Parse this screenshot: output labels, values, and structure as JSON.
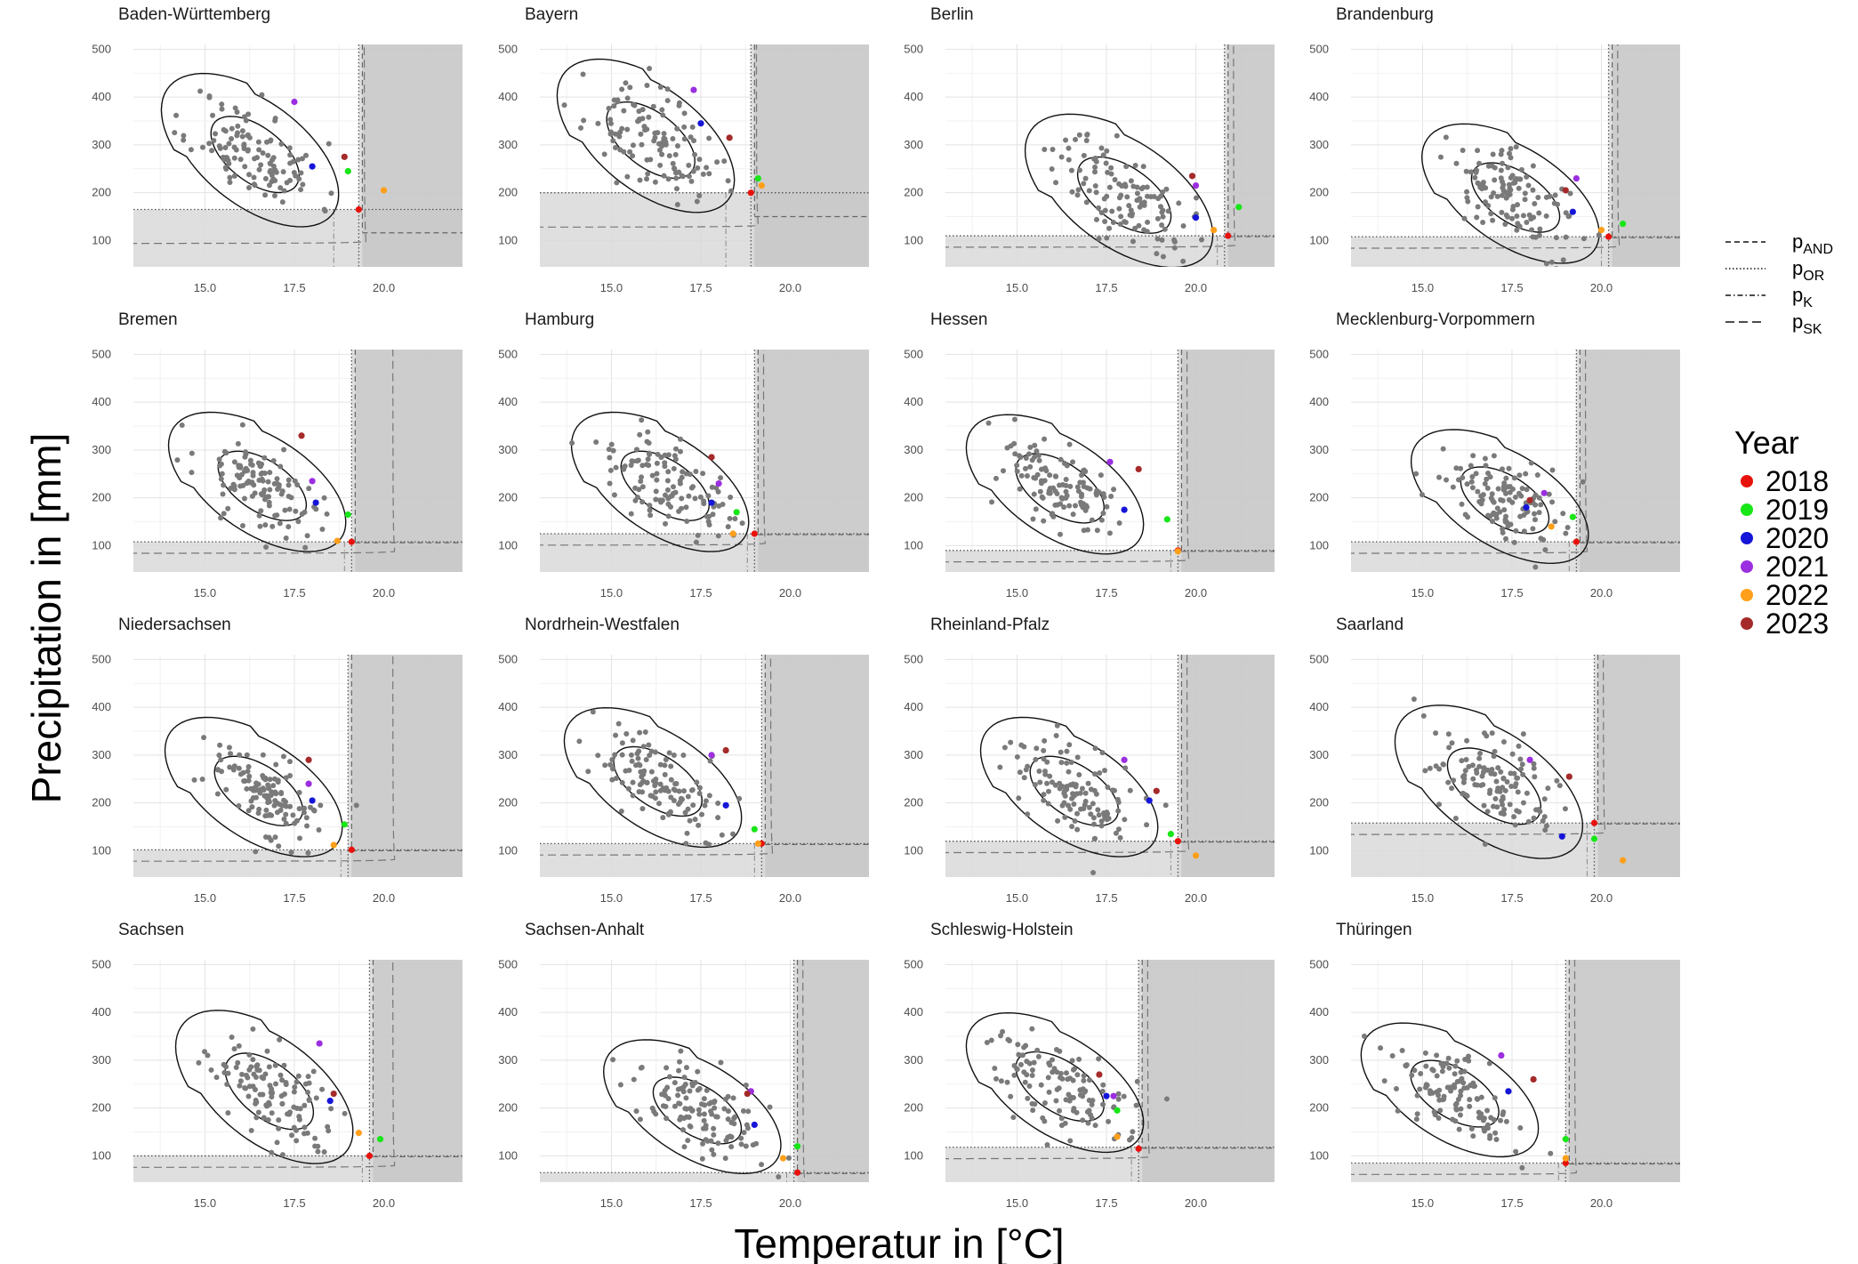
{
  "chart_data": {
    "type": "scatter",
    "xlabel": "Temperatur in [°C]",
    "ylabel": "Precipitation in [mm]",
    "xlim": [
      13,
      22.2
    ],
    "ylim": [
      45,
      510
    ],
    "x_ticks": [
      15.0,
      17.5,
      20.0
    ],
    "x_tick_labels": [
      "15.0",
      "17.5",
      "20.0"
    ],
    "y_ticks": [
      100,
      200,
      300,
      400,
      500
    ],
    "y_tick_labels": [
      "100",
      "200",
      "300",
      "400",
      "500"
    ],
    "grid": true,
    "legend_position": "right",
    "linetype_legend": [
      {
        "base": "p",
        "sub": "AND",
        "style": "dashed"
      },
      {
        "base": "p",
        "sub": "OR",
        "style": "dotted"
      },
      {
        "base": "p",
        "sub": "K",
        "style": "dotdash"
      },
      {
        "base": "p",
        "sub": "SK",
        "style": "longdash"
      }
    ],
    "year_legend": {
      "title": "Year",
      "entries": [
        {
          "label": "2018",
          "color": "#e8120c"
        },
        {
          "label": "2019",
          "color": "#17e617"
        },
        {
          "label": "2020",
          "color": "#1515d9"
        },
        {
          "label": "2021",
          "color": "#9b2fe0"
        },
        {
          "label": "2022",
          "color": "#ff9f1a"
        },
        {
          "label": "2023",
          "color": "#a52a2a"
        }
      ]
    },
    "point_color": "#7a7a7a",
    "panels": [
      {
        "title": "Baden-Württemberg",
        "center": [
          16.4,
          280
        ],
        "spread": [
          0.85,
          55
        ],
        "rho": -0.55,
        "n": 120,
        "seed": 11,
        "or_x": 19.3,
        "or_y": 165,
        "and_x": 19.4,
        "and_y": 118,
        "k_x": 18.6,
        "sk_x": 19.2,
        "sk_y": 118,
        "years": [
          [
            19.3,
            165
          ],
          [
            19.0,
            245
          ],
          [
            18.0,
            255
          ],
          [
            17.5,
            390
          ],
          [
            20.0,
            205
          ],
          [
            18.9,
            275
          ]
        ]
      },
      {
        "title": "Bayern",
        "center": [
          16.1,
          310
        ],
        "spread": [
          0.85,
          55
        ],
        "rho": -0.55,
        "n": 120,
        "seed": 23,
        "or_x": 18.9,
        "or_y": 200,
        "and_x": 19.0,
        "and_y": 152,
        "k_x": 18.2,
        "sk_x": 18.8,
        "sk_y": 152,
        "years": [
          [
            18.9,
            200
          ],
          [
            19.1,
            230
          ],
          [
            17.5,
            345
          ],
          [
            17.3,
            415
          ],
          [
            19.2,
            215
          ],
          [
            18.3,
            315
          ]
        ]
      },
      {
        "title": "Berlin",
        "center": [
          18.0,
          195
        ],
        "spread": [
          0.9,
          55
        ],
        "rho": -0.55,
        "n": 120,
        "seed": 37,
        "or_x": 20.8,
        "or_y": 110,
        "and_x": 20.9,
        "and_y": 110,
        "k_x": 20.6,
        "sk_x": 20.8,
        "sk_y": 110,
        "years": [
          [
            20.9,
            110
          ],
          [
            21.2,
            170
          ],
          [
            20.0,
            148
          ],
          [
            20.0,
            215
          ],
          [
            20.5,
            122
          ],
          [
            19.9,
            235
          ]
        ]
      },
      {
        "title": "Brandenburg",
        "center": [
          17.6,
          190
        ],
        "spread": [
          0.85,
          50
        ],
        "rho": -0.55,
        "n": 120,
        "seed": 41,
        "or_x": 20.2,
        "or_y": 108,
        "and_x": 20.3,
        "and_y": 108,
        "k_x": 20.0,
        "sk_x": 20.2,
        "sk_y": 108,
        "years": [
          [
            20.2,
            108
          ],
          [
            20.6,
            135
          ],
          [
            19.2,
            160
          ],
          [
            19.3,
            230
          ],
          [
            20.0,
            122
          ],
          [
            19.0,
            205
          ]
        ]
      },
      {
        "title": "Bremen",
        "center": [
          16.6,
          225
        ],
        "spread": [
          0.85,
          50
        ],
        "rho": -0.55,
        "n": 120,
        "seed": 53,
        "or_x": 19.1,
        "or_y": 108,
        "and_x": 19.2,
        "and_y": 108,
        "k_x": 18.9,
        "sk_x": 20.0,
        "sk_y": 108,
        "years": [
          [
            19.1,
            108
          ],
          [
            19.0,
            165
          ],
          [
            18.1,
            190
          ],
          [
            18.0,
            235
          ],
          [
            18.7,
            110
          ],
          [
            17.7,
            330
          ]
        ]
      },
      {
        "title": "Hamburg",
        "center": [
          16.5,
          225
        ],
        "spread": [
          0.85,
          50
        ],
        "rho": -0.55,
        "n": 120,
        "seed": 67,
        "or_x": 19.0,
        "or_y": 125,
        "and_x": 19.1,
        "and_y": 125,
        "k_x": 18.8,
        "sk_x": 19.0,
        "sk_y": 125,
        "years": [
          [
            19.0,
            125
          ],
          [
            18.5,
            170
          ],
          [
            17.8,
            190
          ],
          [
            18.0,
            230
          ],
          [
            18.4,
            125
          ],
          [
            17.8,
            285
          ]
        ]
      },
      {
        "title": "Hessen",
        "center": [
          16.2,
          220
        ],
        "spread": [
          0.85,
          50
        ],
        "rho": -0.55,
        "n": 120,
        "seed": 71,
        "or_x": 19.5,
        "or_y": 90,
        "and_x": 19.6,
        "and_y": 90,
        "k_x": 19.3,
        "sk_x": 19.5,
        "sk_y": 90,
        "years": [
          [
            19.5,
            90
          ],
          [
            19.2,
            155
          ],
          [
            18.0,
            175
          ],
          [
            17.6,
            275
          ],
          [
            19.5,
            88
          ],
          [
            18.4,
            260
          ]
        ]
      },
      {
        "title": "Mecklenburg-Vorpommern",
        "center": [
          17.3,
          195
        ],
        "spread": [
          0.85,
          48
        ],
        "rho": -0.55,
        "n": 120,
        "seed": 83,
        "or_x": 19.3,
        "or_y": 108,
        "and_x": 19.4,
        "and_y": 108,
        "k_x": 19.1,
        "sk_x": 19.3,
        "sk_y": 108,
        "years": [
          [
            19.3,
            108
          ],
          [
            19.2,
            160
          ],
          [
            17.9,
            180
          ],
          [
            18.4,
            210
          ],
          [
            18.6,
            140
          ],
          [
            18.0,
            195
          ]
        ]
      },
      {
        "title": "Niedersachsen",
        "center": [
          16.5,
          225
        ],
        "spread": [
          0.85,
          50
        ],
        "rho": -0.55,
        "n": 120,
        "seed": 97,
        "or_x": 19.0,
        "or_y": 102,
        "and_x": 19.1,
        "and_y": 102,
        "k_x": 18.8,
        "sk_x": 20.0,
        "sk_y": 102,
        "years": [
          [
            19.1,
            102
          ],
          [
            18.9,
            155
          ],
          [
            18.0,
            205
          ],
          [
            17.9,
            240
          ],
          [
            18.6,
            112
          ],
          [
            17.9,
            290
          ]
        ]
      },
      {
        "title": "Nordrhein-Westfalen",
        "center": [
          16.3,
          245
        ],
        "spread": [
          0.85,
          50
        ],
        "rho": -0.55,
        "n": 120,
        "seed": 101,
        "or_x": 19.2,
        "or_y": 115,
        "and_x": 19.3,
        "and_y": 115,
        "k_x": 19.0,
        "sk_x": 19.2,
        "sk_y": 115,
        "years": [
          [
            19.2,
            115
          ],
          [
            19.0,
            145
          ],
          [
            18.2,
            195
          ],
          [
            17.8,
            300
          ],
          [
            19.1,
            115
          ],
          [
            18.2,
            310
          ]
        ]
      },
      {
        "title": "Rheinland-Pfalz",
        "center": [
          16.6,
          225
        ],
        "spread": [
          0.85,
          50
        ],
        "rho": -0.55,
        "n": 120,
        "seed": 113,
        "or_x": 19.5,
        "or_y": 120,
        "and_x": 19.6,
        "and_y": 120,
        "k_x": 19.3,
        "sk_x": 19.5,
        "sk_y": 120,
        "years": [
          [
            19.5,
            120
          ],
          [
            19.3,
            135
          ],
          [
            18.7,
            205
          ],
          [
            18.0,
            290
          ],
          [
            20.0,
            90
          ],
          [
            18.9,
            225
          ]
        ]
      },
      {
        "title": "Saarland",
        "center": [
          17.0,
          235
        ],
        "spread": [
          0.9,
          55
        ],
        "rho": -0.55,
        "n": 120,
        "seed": 127,
        "or_x": 19.8,
        "or_y": 158,
        "and_x": 19.9,
        "and_y": 158,
        "k_x": 19.6,
        "sk_x": 19.8,
        "sk_y": 158,
        "years": [
          [
            19.8,
            158
          ],
          [
            19.8,
            125
          ],
          [
            18.9,
            130
          ],
          [
            18.0,
            290
          ],
          [
            20.6,
            80
          ],
          [
            19.1,
            255
          ]
        ]
      },
      {
        "title": "Sachsen",
        "center": [
          16.8,
          235
        ],
        "spread": [
          0.85,
          55
        ],
        "rho": -0.55,
        "n": 120,
        "seed": 131,
        "or_x": 19.6,
        "or_y": 100,
        "and_x": 19.7,
        "and_y": 100,
        "k_x": 19.4,
        "sk_x": 20.0,
        "sk_y": 100,
        "years": [
          [
            19.6,
            100
          ],
          [
            19.9,
            135
          ],
          [
            18.5,
            215
          ],
          [
            18.2,
            335
          ],
          [
            19.3,
            148
          ],
          [
            18.6,
            230
          ]
        ]
      },
      {
        "title": "Sachsen-Anhalt",
        "center": [
          17.4,
          195
        ],
        "spread": [
          0.85,
          48
        ],
        "rho": -0.55,
        "n": 120,
        "seed": 149,
        "or_x": 20.1,
        "or_y": 65,
        "and_x": 20.2,
        "and_y": 65,
        "k_x": 19.9,
        "sk_x": 20.1,
        "sk_y": 65,
        "years": [
          [
            20.2,
            65
          ],
          [
            20.2,
            120
          ],
          [
            19.0,
            165
          ],
          [
            18.9,
            235
          ],
          [
            19.8,
            95
          ],
          [
            18.8,
            230
          ]
        ]
      },
      {
        "title": "Schleswig-Holstein",
        "center": [
          16.2,
          245
        ],
        "spread": [
          0.85,
          50
        ],
        "rho": -0.55,
        "n": 120,
        "seed": 157,
        "or_x": 18.4,
        "or_y": 118,
        "and_x": 18.5,
        "and_y": 118,
        "k_x": 18.2,
        "sk_x": 18.4,
        "sk_y": 118,
        "years": [
          [
            18.4,
            115
          ],
          [
            17.8,
            195
          ],
          [
            17.5,
            225
          ],
          [
            17.7,
            225
          ],
          [
            17.8,
            140
          ],
          [
            17.3,
            270
          ]
        ]
      },
      {
        "title": "Thüringen",
        "center": [
          15.9,
          230
        ],
        "spread": [
          0.85,
          48
        ],
        "rho": -0.55,
        "n": 120,
        "seed": 163,
        "or_x": 19.0,
        "or_y": 85,
        "and_x": 19.1,
        "and_y": 85,
        "k_x": 18.8,
        "sk_x": 19.0,
        "sk_y": 85,
        "years": [
          [
            19.0,
            85
          ],
          [
            19.0,
            135
          ],
          [
            17.4,
            235
          ],
          [
            17.2,
            310
          ],
          [
            19.0,
            95
          ],
          [
            18.1,
            260
          ]
        ]
      }
    ]
  }
}
